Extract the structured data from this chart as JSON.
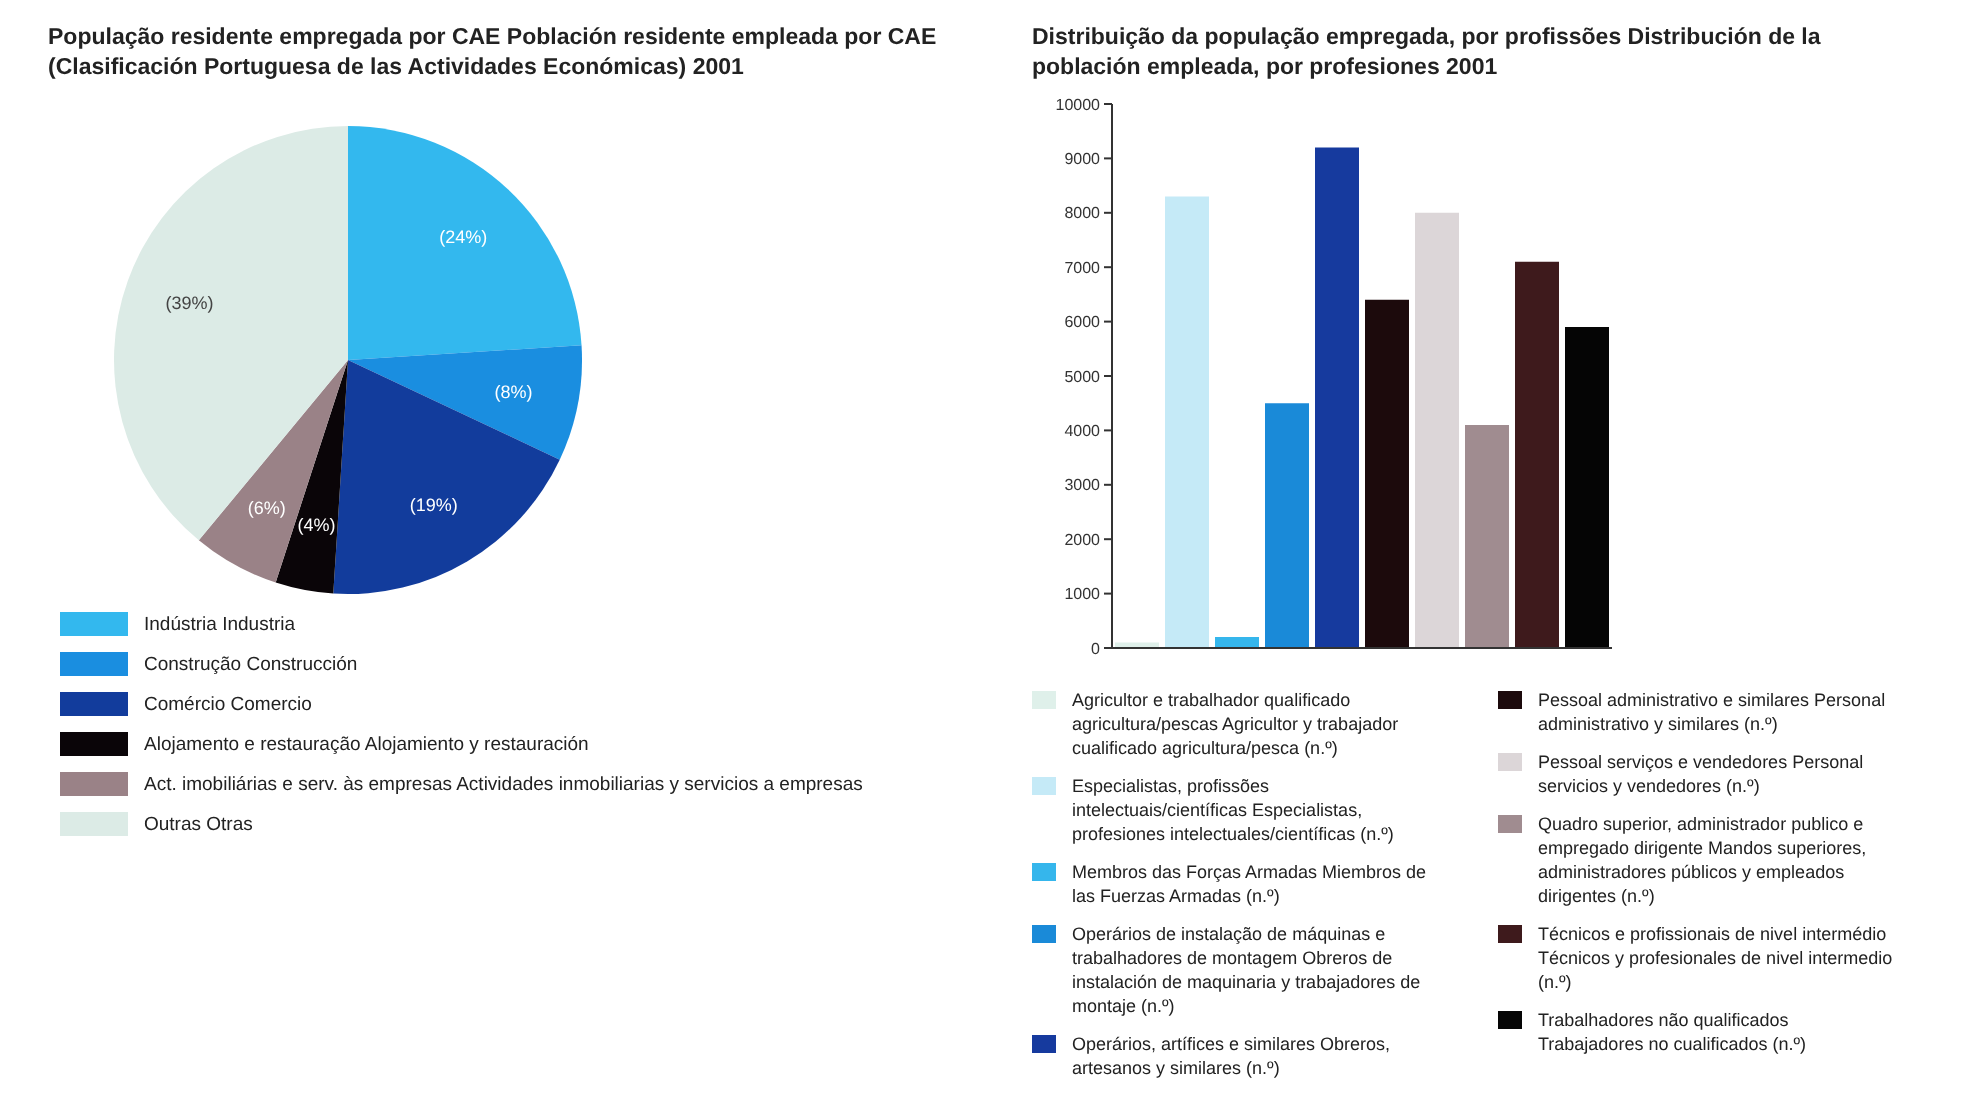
{
  "chart_data": [
    {
      "type": "pie",
      "title": "População residente empregada por CAE Población residente empleada por CAE (Clasificación Portuguesa de las Actividades Económicas) 2001",
      "categories": [
        "Indústria Industria",
        "Construção Construcción",
        "Comércio Comercio",
        "Alojamento e restauração Alojamiento y restauración",
        "Act. imobiliárias e serv. às empresas Actividades inmobiliarias y servicios a empresas",
        "Outras Otras"
      ],
      "values": [
        24,
        8,
        19,
        4,
        6,
        39
      ],
      "value_labels": [
        "(24%)",
        "(8%)",
        "(19%)",
        "(4%)",
        "(6%)",
        "(39%)"
      ],
      "colors": [
        "#33b8ee",
        "#1a8ee0",
        "#123c9c",
        "#0a0508",
        "#9a8287",
        "#dcebe6"
      ],
      "legend": "bottom"
    },
    {
      "type": "bar",
      "title": "Distribuição da população empregada, por profissões Distribución de la población empleada, por profesiones 2001",
      "categories": [
        null,
        null,
        null,
        null,
        null,
        null,
        null,
        null,
        null,
        null
      ],
      "stacked": true,
      "series": [
        {
          "name": "Agricultor e trabalhador qualificado agricultura/pescas Agricultor y trabajador cualificado agricultura/pesca (n.º)",
          "color": "#dff0ea",
          "values": [
            100,
            null,
            null,
            null,
            null,
            null,
            null,
            null,
            null,
            null
          ]
        },
        {
          "name": "Especialistas, profissões intelectuais/científicas Especialistas, profesiones intelectuales/científicas (n.º)",
          "color": "#c5eaf7",
          "values": [
            null,
            8300,
            null,
            null,
            null,
            null,
            null,
            null,
            null,
            null
          ]
        },
        {
          "name": "Membros das Forças Armadas Miembros de las Fuerzas Armadas (n.º)",
          "color": "#35b6ec",
          "values": [
            null,
            null,
            200,
            null,
            null,
            null,
            null,
            null,
            null,
            null
          ]
        },
        {
          "name": "Operários de instalação de máquinas e trabalhadores de montagem Obreros de instalación de maquinaria y trabajadores de montaje (n.º)",
          "color": "#1a8ad8",
          "values": [
            null,
            null,
            null,
            4500,
            null,
            null,
            null,
            null,
            null,
            null
          ]
        },
        {
          "name": "Operários, artífices e similares Obreros, artesanos y similares (n.º)",
          "color": "#163a9e",
          "values": [
            null,
            null,
            null,
            null,
            9200,
            null,
            null,
            null,
            null,
            null
          ]
        },
        {
          "name": "Pessoal administrativo e similares Personal administrativo y similares (n.º)",
          "color": "#1c0a0c",
          "values": [
            null,
            null,
            null,
            null,
            null,
            6400,
            null,
            null,
            null,
            null
          ]
        },
        {
          "name": "Pessoal serviços e vendedores Personal servicios y vendedores (n.º)",
          "color": "#dcd6d8",
          "values": [
            null,
            null,
            null,
            null,
            null,
            null,
            8000,
            null,
            null,
            null
          ]
        },
        {
          "name": "Quadro superior, administrador publico e empregado dirigente Mandos superiores, administradores públicos y empleados dirigentes (n.º)",
          "color": "#a08c90",
          "values": [
            null,
            null,
            null,
            null,
            null,
            null,
            null,
            4100,
            null,
            null
          ]
        },
        {
          "name": "Técnicos e profissionais de nivel intermédio Técnicos y profesionales de nivel intermedio (n.º)",
          "color": "#3e1a1c",
          "values": [
            null,
            null,
            null,
            null,
            null,
            null,
            null,
            null,
            7100,
            null
          ]
        },
        {
          "name": "Trabalhadores não qualificados Trabajadores no cualificados (n.º)",
          "color": "#050505",
          "values": [
            null,
            null,
            null,
            null,
            null,
            null,
            null,
            null,
            null,
            5900
          ]
        }
      ],
      "ylim": [
        0,
        10000
      ],
      "yticks": [
        0,
        1000,
        2000,
        3000,
        4000,
        5000,
        6000,
        7000,
        8000,
        9000,
        10000
      ],
      "tick_labels": "y",
      "legend": "bottom"
    }
  ]
}
